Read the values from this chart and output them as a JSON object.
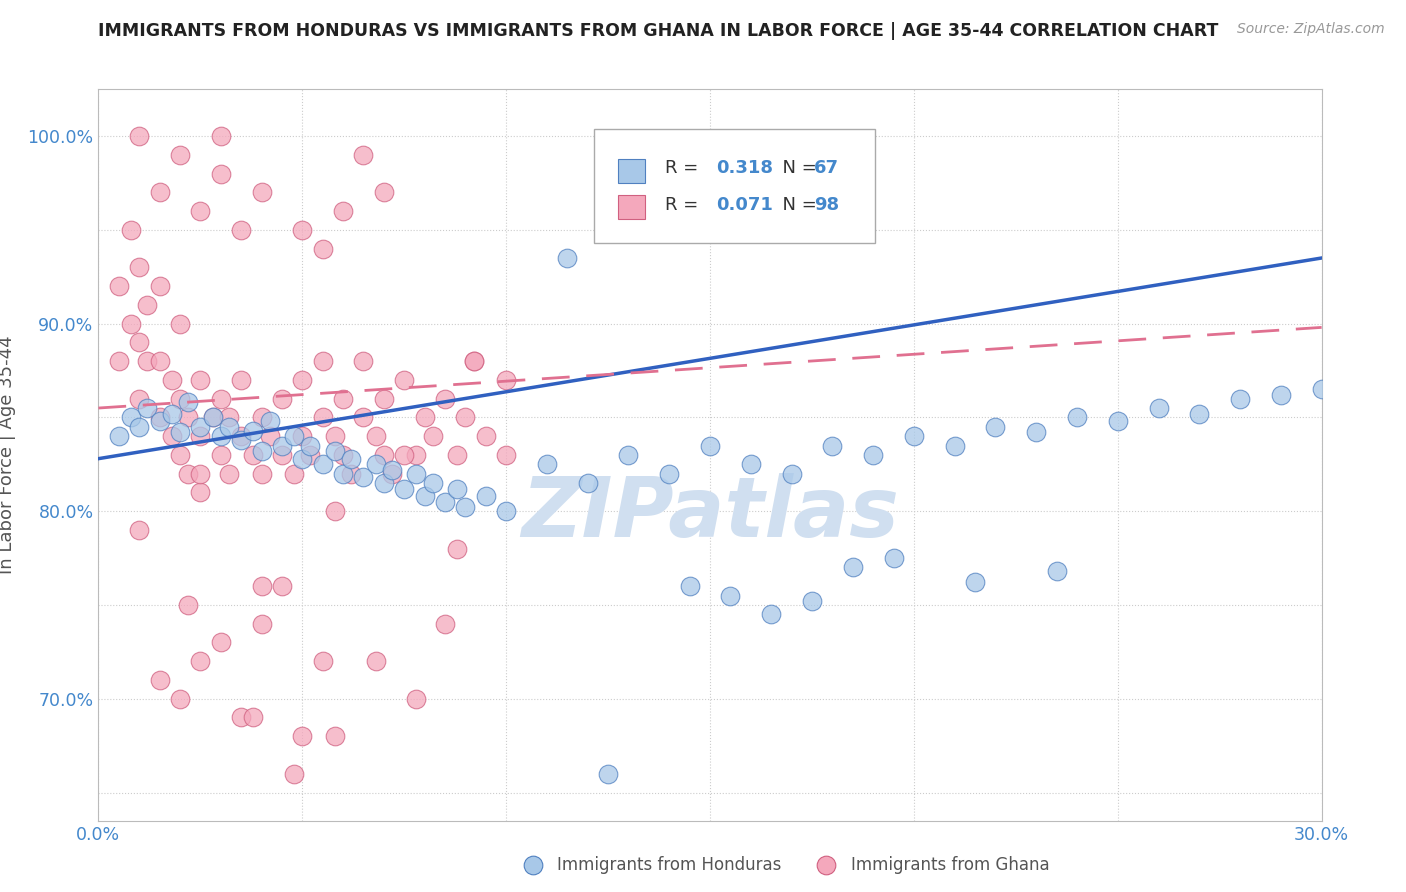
{
  "title": "IMMIGRANTS FROM HONDURAS VS IMMIGRANTS FROM GHANA IN LABOR FORCE | AGE 35-44 CORRELATION CHART",
  "source": "Source: ZipAtlas.com",
  "ylabel": "In Labor Force | Age 35-44",
  "xlim": [
    0.0,
    0.3
  ],
  "ylim": [
    0.635,
    1.025
  ],
  "color_blue": "#A8C8E8",
  "color_pink": "#F4A8BC",
  "color_blue_edge": "#5080C0",
  "color_pink_edge": "#D06080",
  "color_blue_line": "#3060C0",
  "color_pink_line": "#E07090",
  "watermark": "ZIPatlas",
  "watermark_color": "#D0DFF0",
  "blue_x": [
    0.005,
    0.008,
    0.01,
    0.012,
    0.015,
    0.018,
    0.02,
    0.022,
    0.025,
    0.028,
    0.03,
    0.032,
    0.035,
    0.038,
    0.04,
    0.042,
    0.045,
    0.048,
    0.05,
    0.052,
    0.055,
    0.058,
    0.06,
    0.062,
    0.065,
    0.068,
    0.07,
    0.072,
    0.075,
    0.078,
    0.08,
    0.082,
    0.085,
    0.088,
    0.09,
    0.095,
    0.1,
    0.11,
    0.12,
    0.13,
    0.14,
    0.15,
    0.16,
    0.17,
    0.18,
    0.19,
    0.2,
    0.21,
    0.22,
    0.23,
    0.24,
    0.25,
    0.26,
    0.27,
    0.28,
    0.29,
    0.3,
    0.155,
    0.145,
    0.185,
    0.195,
    0.215,
    0.235,
    0.175,
    0.165,
    0.125,
    0.115
  ],
  "blue_y": [
    0.84,
    0.85,
    0.845,
    0.855,
    0.848,
    0.852,
    0.842,
    0.858,
    0.845,
    0.85,
    0.84,
    0.845,
    0.838,
    0.843,
    0.832,
    0.848,
    0.835,
    0.84,
    0.828,
    0.835,
    0.825,
    0.832,
    0.82,
    0.828,
    0.818,
    0.825,
    0.815,
    0.822,
    0.812,
    0.82,
    0.808,
    0.815,
    0.805,
    0.812,
    0.802,
    0.808,
    0.8,
    0.825,
    0.815,
    0.83,
    0.82,
    0.835,
    0.825,
    0.82,
    0.835,
    0.83,
    0.84,
    0.835,
    0.845,
    0.842,
    0.85,
    0.848,
    0.855,
    0.852,
    0.86,
    0.862,
    0.865,
    0.755,
    0.76,
    0.77,
    0.775,
    0.762,
    0.768,
    0.752,
    0.745,
    0.66,
    0.935
  ],
  "pink_x": [
    0.005,
    0.005,
    0.008,
    0.008,
    0.01,
    0.01,
    0.01,
    0.012,
    0.012,
    0.015,
    0.015,
    0.015,
    0.018,
    0.018,
    0.02,
    0.02,
    0.02,
    0.022,
    0.022,
    0.025,
    0.025,
    0.025,
    0.028,
    0.03,
    0.03,
    0.032,
    0.032,
    0.035,
    0.035,
    0.038,
    0.04,
    0.04,
    0.042,
    0.045,
    0.045,
    0.048,
    0.05,
    0.05,
    0.052,
    0.055,
    0.055,
    0.058,
    0.06,
    0.06,
    0.062,
    0.065,
    0.065,
    0.068,
    0.07,
    0.07,
    0.072,
    0.075,
    0.078,
    0.08,
    0.082,
    0.085,
    0.088,
    0.09,
    0.092,
    0.095,
    0.1,
    0.1,
    0.015,
    0.02,
    0.025,
    0.03,
    0.035,
    0.04,
    0.045,
    0.05,
    0.055,
    0.06,
    0.065,
    0.07,
    0.025,
    0.03,
    0.015,
    0.04,
    0.05,
    0.02,
    0.035,
    0.055,
    0.022,
    0.038,
    0.048,
    0.058,
    0.068,
    0.078,
    0.085,
    0.092,
    0.01,
    0.025,
    0.04,
    0.058,
    0.075,
    0.088,
    0.01,
    0.03
  ],
  "pink_y": [
    0.88,
    0.92,
    0.9,
    0.95,
    0.86,
    0.89,
    0.93,
    0.88,
    0.91,
    0.85,
    0.88,
    0.92,
    0.84,
    0.87,
    0.83,
    0.86,
    0.9,
    0.82,
    0.85,
    0.81,
    0.84,
    0.87,
    0.85,
    0.83,
    0.86,
    0.82,
    0.85,
    0.84,
    0.87,
    0.83,
    0.82,
    0.85,
    0.84,
    0.83,
    0.86,
    0.82,
    0.84,
    0.87,
    0.83,
    0.85,
    0.88,
    0.84,
    0.83,
    0.86,
    0.82,
    0.85,
    0.88,
    0.84,
    0.83,
    0.86,
    0.82,
    0.87,
    0.83,
    0.85,
    0.84,
    0.86,
    0.83,
    0.85,
    0.88,
    0.84,
    0.87,
    0.83,
    0.97,
    0.99,
    0.96,
    0.98,
    0.95,
    0.97,
    0.76,
    0.95,
    0.94,
    0.96,
    0.99,
    0.97,
    0.72,
    0.73,
    0.71,
    0.74,
    0.68,
    0.7,
    0.69,
    0.72,
    0.75,
    0.69,
    0.66,
    0.68,
    0.72,
    0.7,
    0.74,
    0.88,
    0.79,
    0.82,
    0.76,
    0.8,
    0.83,
    0.78,
    1.0,
    1.0
  ],
  "blue_trend_x0": 0.0,
  "blue_trend_x1": 0.3,
  "blue_trend_y0": 0.828,
  "blue_trend_y1": 0.935,
  "pink_trend_x0": 0.0,
  "pink_trend_x1": 0.3,
  "pink_trend_y0": 0.855,
  "pink_trend_y1": 0.898
}
